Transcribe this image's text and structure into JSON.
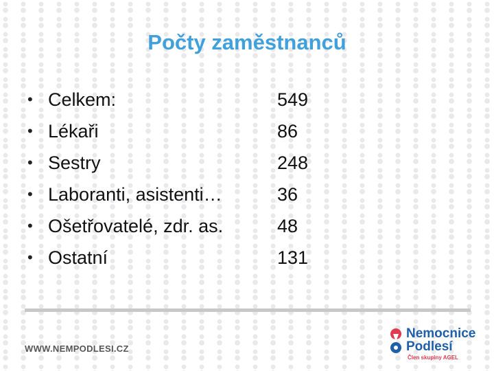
{
  "slide": {
    "title": "Počty zaměstnanců",
    "bullet_glyph": "•",
    "rows": [
      {
        "label": "Celkem:",
        "value": "549"
      },
      {
        "label": "Lékaři",
        "value": "86"
      },
      {
        "label": "Sestry",
        "value": "248"
      },
      {
        "label": "Laboranti, asistenti…",
        "value": "36"
      },
      {
        "label": "Ošetřovatelé, zdr. as.",
        "value": "48"
      },
      {
        "label": "Ostatní",
        "value": "131"
      }
    ]
  },
  "footer": {
    "url": "WWW.NEMPODLESI.CZ",
    "logo": {
      "line1": "Nemocnice",
      "line2": "Podlesí",
      "line3": "Člen skupiny AGEL"
    }
  },
  "colors": {
    "title": "#3fa0dc",
    "logo_blue": "#1f5fa8",
    "logo_red": "#e03b4f",
    "divider": "#c8c8c8"
  }
}
